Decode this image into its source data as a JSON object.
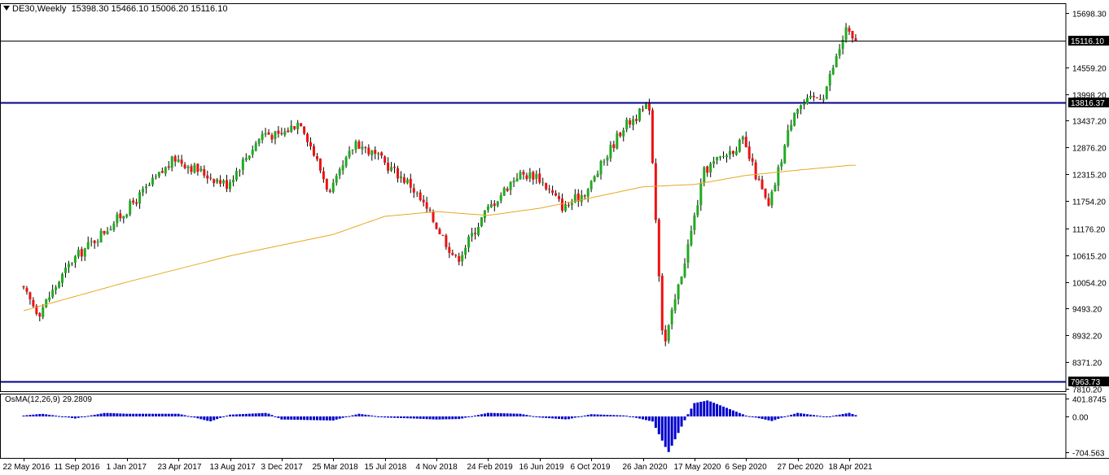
{
  "header": {
    "symbol": "DE30,Weekly",
    "ohlc": "15398.30 15466.10 15006.20 15116.10"
  },
  "indicator": {
    "name": "OsMA(12,26,9)",
    "value": "29.2809"
  },
  "colors": {
    "bull": "#22aa22",
    "bear": "#ee1111",
    "ma": "#e6a820",
    "level_line": "#00008b",
    "osma": "#0000cc",
    "axis": "#000000",
    "price_tag_bg": "#000000",
    "price_tag_fg": "#ffffff"
  },
  "chart_data": [
    {
      "type": "candlestick",
      "timeframe": "Weekly",
      "symbol": "DE30",
      "ylim": [
        7810.2,
        15698.3
      ],
      "y_ticks": [
        "15698.30",
        "14559.20",
        "13998.20",
        "13437.20",
        "12876.20",
        "12315.20",
        "11754.20",
        "11176.20",
        "10615.20",
        "10054.20",
        "9493.20",
        "8932.20",
        "8371.20",
        "7810.20"
      ],
      "x_ticks": [
        "22 May 2016",
        "11 Sep 2016",
        "1 Jan 2017",
        "23 Apr 2017",
        "13 Aug 2017",
        "3 Dec 2017",
        "25 Mar 2018",
        "15 Jul 2018",
        "4 Nov 2018",
        "24 Feb 2019",
        "16 Jun 2019",
        "6 Oct 2019",
        "26 Jan 2020",
        "17 May 2020",
        "6 Sep 2020",
        "27 Dec 2020",
        "18 Apr 2021"
      ],
      "last_price": "15116.10",
      "horizontal_levels": [
        "13816.37",
        "7963.73"
      ],
      "moving_average_anchors": [
        {
          "date": "22 May 2016",
          "value": 9450
        },
        {
          "date": "1 Jan 2017",
          "value": 10050
        },
        {
          "date": "13 Aug 2017",
          "value": 10600
        },
        {
          "date": "25 Mar 2018",
          "value": 11050
        },
        {
          "date": "15 Jul 2018",
          "value": 11430
        },
        {
          "date": "4 Nov 2018",
          "value": 11530
        },
        {
          "date": "24 Feb 2019",
          "value": 11450
        },
        {
          "date": "16 Jun 2019",
          "value": 11600
        },
        {
          "date": "6 Oct 2019",
          "value": 11820
        },
        {
          "date": "26 Jan 2020",
          "value": 12050
        },
        {
          "date": "17 May 2020",
          "value": 12100
        },
        {
          "date": "6 Sep 2020",
          "value": 12290
        },
        {
          "date": "27 Dec 2020",
          "value": 12400
        },
        {
          "date": "18 Apr 2021",
          "value": 12500
        }
      ],
      "price_anchors": [
        {
          "date": "22 May 2016",
          "value": 9950
        },
        {
          "date": "1 Jul 2016",
          "value": 9400
        },
        {
          "date": "11 Sep 2016",
          "value": 10500
        },
        {
          "date": "1 Jan 2017",
          "value": 11500
        },
        {
          "date": "23 Apr 2017",
          "value": 12650
        },
        {
          "date": "1 Jul 2017",
          "value": 12300
        },
        {
          "date": "13 Aug 2017",
          "value": 12100
        },
        {
          "date": "1 Nov 2017",
          "value": 13200
        },
        {
          "date": "3 Dec 2017",
          "value": 13100
        },
        {
          "date": "20 Jan 2018",
          "value": 13450
        },
        {
          "date": "25 Mar 2018",
          "value": 11900
        },
        {
          "date": "20 May 2018",
          "value": 13000
        },
        {
          "date": "15 Jul 2018",
          "value": 12600
        },
        {
          "date": "15 Sep 2018",
          "value": 12100
        },
        {
          "date": "4 Nov 2018",
          "value": 11350
        },
        {
          "date": "25 Dec 2018",
          "value": 10500
        },
        {
          "date": "24 Feb 2019",
          "value": 11500
        },
        {
          "date": "5 May 2019",
          "value": 12300
        },
        {
          "date": "16 Jun 2019",
          "value": 12300
        },
        {
          "date": "15 Aug 2019",
          "value": 11600
        },
        {
          "date": "6 Oct 2019",
          "value": 12000
        },
        {
          "date": "20 Dec 2019",
          "value": 13300
        },
        {
          "date": "16 Feb 2020",
          "value": 13750
        },
        {
          "date": "15 Mar 2020",
          "value": 9100
        },
        {
          "date": "22 Mar 2020",
          "value": 8800
        },
        {
          "date": "17 May 2020",
          "value": 11100
        },
        {
          "date": "15 Jun 2020",
          "value": 12400
        },
        {
          "date": "6 Sep 2020",
          "value": 13000
        },
        {
          "date": "1 Nov 2020",
          "value": 11600
        },
        {
          "date": "27 Dec 2020",
          "value": 13700
        },
        {
          "date": "1 Mar 2021",
          "value": 14000
        },
        {
          "date": "18 Apr 2021",
          "value": 15350
        },
        {
          "date": "2 May 2021",
          "value": 15116.1
        }
      ]
    },
    {
      "type": "bar",
      "name": "OsMA(12,26,9)",
      "current_value": 29.2809,
      "ylim": [
        -704.563,
        401.8745
      ],
      "y_ticks": [
        "401.8745",
        "0.00",
        "-704.563"
      ],
      "anchors": [
        {
          "date": "22 May 2016",
          "value": 20
        },
        {
          "date": "1 Jul 2016",
          "value": 60
        },
        {
          "date": "11 Sep 2016",
          "value": -40
        },
        {
          "date": "15 Nov 2016",
          "value": 80
        },
        {
          "date": "1 Jan 2017",
          "value": 60
        },
        {
          "date": "23 Apr 2017",
          "value": 60
        },
        {
          "date": "1 Jul 2017",
          "value": -100
        },
        {
          "date": "13 Aug 2017",
          "value": 40
        },
        {
          "date": "1 Nov 2017",
          "value": 80
        },
        {
          "date": "3 Dec 2017",
          "value": -60
        },
        {
          "date": "25 Mar 2018",
          "value": -80
        },
        {
          "date": "20 May 2018",
          "value": 60
        },
        {
          "date": "15 Jul 2018",
          "value": -20
        },
        {
          "date": "15 Sep 2018",
          "value": -40
        },
        {
          "date": "4 Nov 2018",
          "value": -60
        },
        {
          "date": "25 Dec 2018",
          "value": -50
        },
        {
          "date": "24 Feb 2019",
          "value": 80
        },
        {
          "date": "5 May 2019",
          "value": 60
        },
        {
          "date": "16 Jun 2019",
          "value": -20
        },
        {
          "date": "15 Aug 2019",
          "value": -60
        },
        {
          "date": "6 Oct 2019",
          "value": 50
        },
        {
          "date": "20 Dec 2019",
          "value": 20
        },
        {
          "date": "16 Feb 2020",
          "value": -100
        },
        {
          "date": "15 Mar 2020",
          "value": -600
        },
        {
          "date": "22 Mar 2020",
          "value": -700
        },
        {
          "date": "17 May 2020",
          "value": 300
        },
        {
          "date": "15 Jun 2020",
          "value": 360
        },
        {
          "date": "6 Sep 2020",
          "value": 20
        },
        {
          "date": "1 Nov 2020",
          "value": -90
        },
        {
          "date": "27 Dec 2020",
          "value": 80
        },
        {
          "date": "1 Mar 2021",
          "value": -10
        },
        {
          "date": "18 Apr 2021",
          "value": 80
        },
        {
          "date": "2 May 2021",
          "value": 29.2809
        }
      ]
    }
  ]
}
